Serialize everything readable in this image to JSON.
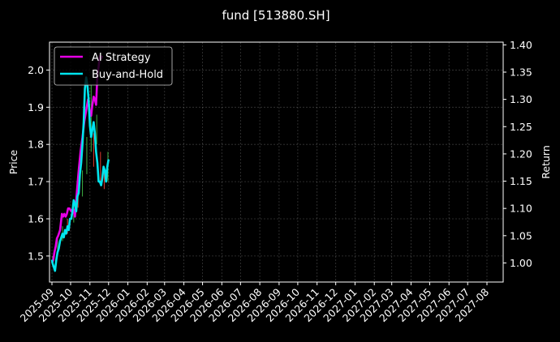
{
  "chart_data": {
    "type": "line",
    "title": "fund [513880.SH]",
    "ylabel": "Price",
    "y2label": "Return",
    "ylim": [
      1.43,
      2.075
    ],
    "y2lim": [
      0.965,
      1.405
    ],
    "yticks": [
      1.5,
      1.6,
      1.7,
      1.8,
      1.9,
      2.0
    ],
    "y2ticks": [
      1.0,
      1.05,
      1.1,
      1.15,
      1.2,
      1.25,
      1.3,
      1.35,
      1.4
    ],
    "y2tick_labels": [
      "1.00",
      "1.05",
      "1.10",
      "1.15",
      "1.20",
      "1.25",
      "1.30",
      "1.35",
      "1.40"
    ],
    "x_tick_labels": [
      "2025-09",
      "2025-10",
      "2025-11",
      "2025-12",
      "2026-01",
      "2026-02",
      "2026-03",
      "2026-04",
      "2026-05",
      "2026-06",
      "2026-07",
      "2026-08",
      "2026-09",
      "2026-10",
      "2026-11",
      "2026-12",
      "2027-01",
      "2027-02",
      "2027-03",
      "2027-04",
      "2027-05",
      "2027-06",
      "2027-07",
      "2027-08"
    ],
    "grid": true,
    "legend_position": "top-left",
    "candles": [
      {
        "date": "2025-09-02",
        "low": 1.48,
        "high": 1.5,
        "up": true
      },
      {
        "date": "2025-09-10",
        "low": 1.5,
        "high": 1.55,
        "up": true
      },
      {
        "date": "2025-09-18",
        "low": 1.54,
        "high": 1.58,
        "up": true
      },
      {
        "date": "2025-09-26",
        "low": 1.56,
        "high": 1.6,
        "up": false
      },
      {
        "date": "2025-10-06",
        "low": 1.59,
        "high": 1.64,
        "up": true
      },
      {
        "date": "2025-10-13",
        "low": 1.63,
        "high": 1.69,
        "up": false
      },
      {
        "date": "2025-10-20",
        "low": 1.66,
        "high": 1.73,
        "up": true
      },
      {
        "date": "2025-10-27",
        "low": 1.72,
        "high": 1.82,
        "up": true
      },
      {
        "date": "2025-11-03",
        "low": 1.78,
        "high": 1.96,
        "up": true
      },
      {
        "date": "2025-11-07",
        "low": 1.74,
        "high": 1.83,
        "up": false
      },
      {
        "date": "2025-11-12",
        "low": 1.8,
        "high": 1.88,
        "up": true
      },
      {
        "date": "2025-11-18",
        "low": 1.7,
        "high": 1.78,
        "up": false
      },
      {
        "date": "2025-11-24",
        "low": 1.68,
        "high": 1.74,
        "up": false
      },
      {
        "date": "2025-11-30",
        "low": 1.7,
        "high": 1.78,
        "up": true
      }
    ],
    "series": [
      {
        "name": "AI Strategy",
        "color": "#e600e6",
        "axis": "return",
        "x": [
          "2025-09-01",
          "2025-09-03",
          "2025-09-05",
          "2025-09-07",
          "2025-09-09",
          "2025-09-11",
          "2025-09-14",
          "2025-09-17",
          "2025-09-19",
          "2025-09-21",
          "2025-09-23",
          "2025-09-25",
          "2025-09-27",
          "2025-09-29",
          "2025-10-02",
          "2025-10-05",
          "2025-10-08",
          "2025-10-11",
          "2025-10-14",
          "2025-10-17",
          "2025-10-20",
          "2025-10-23",
          "2025-10-26",
          "2025-10-29",
          "2025-11-01",
          "2025-11-03",
          "2025-11-05",
          "2025-11-07",
          "2025-11-09",
          "2025-11-11",
          "2025-11-13",
          "2025-11-15",
          "2025-11-17",
          "2025-11-19",
          "2025-11-21"
        ],
        "values": [
          1.0,
          1.005,
          1.02,
          1.03,
          1.045,
          1.05,
          1.06,
          1.09,
          1.085,
          1.09,
          1.085,
          1.09,
          1.1,
          1.1,
          1.095,
          1.1,
          1.085,
          1.13,
          1.17,
          1.205,
          1.23,
          1.26,
          1.28,
          1.3,
          1.275,
          1.27,
          1.29,
          1.305,
          1.3,
          1.29,
          1.345,
          1.36,
          1.38,
          1.375,
          1.38
        ]
      },
      {
        "name": "Buy-and-Hold",
        "color": "#00e5ee",
        "axis": "price",
        "x": [
          "2025-09-01",
          "2025-09-02",
          "2025-09-04",
          "2025-09-06",
          "2025-09-08",
          "2025-09-10",
          "2025-09-12",
          "2025-09-14",
          "2025-09-16",
          "2025-09-18",
          "2025-09-20",
          "2025-09-22",
          "2025-09-24",
          "2025-09-26",
          "2025-09-28",
          "2025-09-30",
          "2025-10-02",
          "2025-10-04",
          "2025-10-06",
          "2025-10-08",
          "2025-10-10",
          "2025-10-12",
          "2025-10-14",
          "2025-10-16",
          "2025-10-18",
          "2025-10-20",
          "2025-10-22",
          "2025-10-24",
          "2025-10-26",
          "2025-10-28",
          "2025-10-30",
          "2025-11-01",
          "2025-11-03",
          "2025-11-05",
          "2025-11-07",
          "2025-11-09",
          "2025-11-11",
          "2025-11-13",
          "2025-11-15",
          "2025-11-17",
          "2025-11-19",
          "2025-11-21",
          "2025-11-23",
          "2025-11-25",
          "2025-11-27",
          "2025-11-29",
          "2025-12-01"
        ],
        "values": [
          1.49,
          1.48,
          1.47,
          1.46,
          1.49,
          1.51,
          1.52,
          1.54,
          1.55,
          1.56,
          1.55,
          1.57,
          1.56,
          1.58,
          1.57,
          1.6,
          1.6,
          1.62,
          1.65,
          1.64,
          1.62,
          1.66,
          1.67,
          1.72,
          1.75,
          1.8,
          1.86,
          1.95,
          1.98,
          1.96,
          1.92,
          1.85,
          1.82,
          1.84,
          1.86,
          1.83,
          1.78,
          1.75,
          1.7,
          1.7,
          1.69,
          1.71,
          1.74,
          1.73,
          1.7,
          1.74,
          1.76
        ]
      }
    ]
  }
}
